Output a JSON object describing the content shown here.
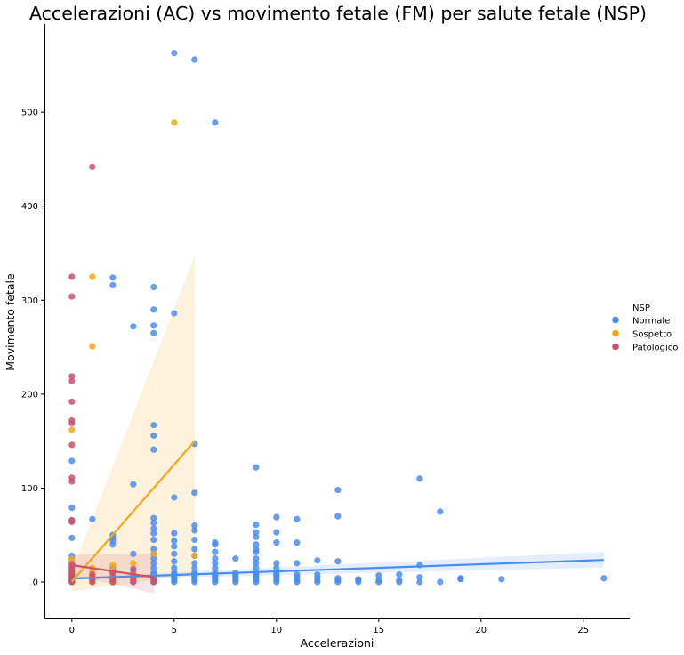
{
  "chart_data": {
    "type": "scatter",
    "title": "Accelerazioni (AC) vs movimento fetale (FM) per salute fetale (NSP)",
    "xlabel": "Accelerazioni",
    "ylabel": "Movimento fetale",
    "xlim": [
      -1.3,
      27.3
    ],
    "ylim": [
      -40,
      595
    ],
    "xticks": [
      "0",
      "5",
      "10",
      "15",
      "20",
      "25"
    ],
    "yticks": [
      "0",
      "100",
      "200",
      "300",
      "400",
      "500"
    ],
    "legend": {
      "title": "NSP",
      "placement": "right"
    },
    "series": [
      {
        "name": "Normale",
        "color": "#4a8df0",
        "points": [
          [
            0,
            0
          ],
          [
            0,
            3
          ],
          [
            0,
            5
          ],
          [
            0,
            8
          ],
          [
            0,
            12
          ],
          [
            0,
            15
          ],
          [
            0,
            20
          ],
          [
            0,
            25
          ],
          [
            0,
            28
          ],
          [
            0,
            47
          ],
          [
            0,
            65
          ],
          [
            0,
            79
          ],
          [
            0,
            129
          ],
          [
            1,
            0
          ],
          [
            1,
            3
          ],
          [
            1,
            8
          ],
          [
            1,
            67
          ],
          [
            2,
            0
          ],
          [
            2,
            5
          ],
          [
            2,
            10
          ],
          [
            2,
            15
          ],
          [
            2,
            40
          ],
          [
            2,
            44
          ],
          [
            2,
            47
          ],
          [
            2,
            50
          ],
          [
            2,
            316
          ],
          [
            2,
            324
          ],
          [
            3,
            0
          ],
          [
            3,
            2
          ],
          [
            3,
            5
          ],
          [
            3,
            8
          ],
          [
            3,
            12
          ],
          [
            3,
            30
          ],
          [
            3,
            104
          ],
          [
            3,
            272
          ],
          [
            4,
            0
          ],
          [
            4,
            2
          ],
          [
            4,
            4
          ],
          [
            4,
            6
          ],
          [
            4,
            8
          ],
          [
            4,
            10
          ],
          [
            4,
            15
          ],
          [
            4,
            20
          ],
          [
            4,
            25
          ],
          [
            4,
            30
          ],
          [
            4,
            35
          ],
          [
            4,
            45
          ],
          [
            4,
            52
          ],
          [
            4,
            57
          ],
          [
            4,
            63
          ],
          [
            4,
            68
          ],
          [
            4,
            141
          ],
          [
            4,
            156
          ],
          [
            4,
            167
          ],
          [
            4,
            265
          ],
          [
            4,
            273
          ],
          [
            4,
            290
          ],
          [
            4,
            314
          ],
          [
            5,
            0
          ],
          [
            5,
            2
          ],
          [
            5,
            4
          ],
          [
            5,
            6
          ],
          [
            5,
            8
          ],
          [
            5,
            10
          ],
          [
            5,
            15
          ],
          [
            5,
            22
          ],
          [
            5,
            30
          ],
          [
            5,
            38
          ],
          [
            5,
            44
          ],
          [
            5,
            52
          ],
          [
            5,
            90
          ],
          [
            5,
            286
          ],
          [
            5,
            563
          ],
          [
            6,
            0
          ],
          [
            6,
            2
          ],
          [
            6,
            4
          ],
          [
            6,
            6
          ],
          [
            6,
            8
          ],
          [
            6,
            10
          ],
          [
            6,
            15
          ],
          [
            6,
            20
          ],
          [
            6,
            28
          ],
          [
            6,
            35
          ],
          [
            6,
            45
          ],
          [
            6,
            55
          ],
          [
            6,
            60
          ],
          [
            6,
            95
          ],
          [
            6,
            147
          ],
          [
            6,
            556
          ],
          [
            7,
            0
          ],
          [
            7,
            2
          ],
          [
            7,
            4
          ],
          [
            7,
            6
          ],
          [
            7,
            8
          ],
          [
            7,
            10
          ],
          [
            7,
            15
          ],
          [
            7,
            20
          ],
          [
            7,
            25
          ],
          [
            7,
            32
          ],
          [
            7,
            40
          ],
          [
            7,
            42
          ],
          [
            7,
            489
          ],
          [
            8,
            0
          ],
          [
            8,
            2
          ],
          [
            8,
            4
          ],
          [
            8,
            6
          ],
          [
            8,
            8
          ],
          [
            8,
            10
          ],
          [
            8,
            25
          ],
          [
            9,
            0
          ],
          [
            9,
            2
          ],
          [
            9,
            4
          ],
          [
            9,
            6
          ],
          [
            9,
            8
          ],
          [
            9,
            10
          ],
          [
            9,
            15
          ],
          [
            9,
            20
          ],
          [
            9,
            25
          ],
          [
            9,
            32
          ],
          [
            9,
            35
          ],
          [
            9,
            40
          ],
          [
            9,
            48
          ],
          [
            9,
            53
          ],
          [
            9,
            61
          ],
          [
            9,
            122
          ],
          [
            10,
            0
          ],
          [
            10,
            2
          ],
          [
            10,
            4
          ],
          [
            10,
            6
          ],
          [
            10,
            8
          ],
          [
            10,
            10
          ],
          [
            10,
            15
          ],
          [
            10,
            20
          ],
          [
            10,
            42
          ],
          [
            10,
            53
          ],
          [
            10,
            69
          ],
          [
            11,
            0
          ],
          [
            11,
            2
          ],
          [
            11,
            5
          ],
          [
            11,
            8
          ],
          [
            11,
            20
          ],
          [
            11,
            42
          ],
          [
            11,
            67
          ],
          [
            12,
            0
          ],
          [
            12,
            2
          ],
          [
            12,
            5
          ],
          [
            12,
            8
          ],
          [
            12,
            23
          ],
          [
            13,
            0
          ],
          [
            13,
            2
          ],
          [
            13,
            4
          ],
          [
            13,
            22
          ],
          [
            13,
            70
          ],
          [
            13,
            98
          ],
          [
            14,
            0
          ],
          [
            14,
            2
          ],
          [
            14,
            3
          ],
          [
            15,
            0
          ],
          [
            15,
            2
          ],
          [
            15,
            7
          ],
          [
            16,
            0
          ],
          [
            16,
            2
          ],
          [
            16,
            8
          ],
          [
            17,
            0
          ],
          [
            17,
            5
          ],
          [
            17,
            18
          ],
          [
            17,
            110
          ],
          [
            18,
            0
          ],
          [
            18,
            75
          ],
          [
            19,
            3
          ],
          [
            19,
            4
          ],
          [
            21,
            3
          ],
          [
            26,
            4
          ]
        ],
        "fit": {
          "x": [
            0,
            26
          ],
          "y": [
            3.7,
            23.5
          ],
          "ci_low": [
            2.2,
            15.5
          ],
          "ci_high": [
            5.2,
            32
          ]
        }
      },
      {
        "name": "Sospetto",
        "color": "#f5a816",
        "points": [
          [
            0,
            0
          ],
          [
            0,
            2
          ],
          [
            0,
            5
          ],
          [
            0,
            8
          ],
          [
            0,
            12
          ],
          [
            0,
            15
          ],
          [
            0,
            18
          ],
          [
            0,
            22
          ],
          [
            0,
            25
          ],
          [
            0,
            162
          ],
          [
            1,
            0
          ],
          [
            1,
            3
          ],
          [
            1,
            8
          ],
          [
            1,
            12
          ],
          [
            1,
            15
          ],
          [
            1,
            251
          ],
          [
            1,
            325
          ],
          [
            2,
            0
          ],
          [
            2,
            5
          ],
          [
            2,
            12
          ],
          [
            2,
            18
          ],
          [
            3,
            2
          ],
          [
            3,
            8
          ],
          [
            3,
            20
          ],
          [
            4,
            5
          ],
          [
            4,
            30
          ],
          [
            6,
            28
          ],
          [
            5,
            489
          ]
        ],
        "fit": {
          "x": [
            0,
            6
          ],
          "y": [
            0.5,
            150
          ],
          "ci_low": [
            -10,
            8
          ],
          "ci_high": [
            11,
            347
          ]
        }
      },
      {
        "name": "Patologico",
        "color": "#d0506a",
        "points": [
          [
            0,
            0
          ],
          [
            0,
            1
          ],
          [
            0,
            2
          ],
          [
            0,
            4
          ],
          [
            0,
            6
          ],
          [
            0,
            8
          ],
          [
            0,
            10
          ],
          [
            0,
            13
          ],
          [
            0,
            16
          ],
          [
            0,
            19
          ],
          [
            0,
            64
          ],
          [
            0,
            66
          ],
          [
            0,
            107
          ],
          [
            0,
            111
          ],
          [
            0,
            146
          ],
          [
            0,
            169
          ],
          [
            0,
            172
          ],
          [
            0,
            192
          ],
          [
            0,
            214
          ],
          [
            0,
            219
          ],
          [
            0,
            304
          ],
          [
            0,
            325
          ],
          [
            1,
            0
          ],
          [
            1,
            2
          ],
          [
            1,
            5
          ],
          [
            1,
            8
          ],
          [
            1,
            442
          ],
          [
            2,
            0
          ],
          [
            2,
            2
          ],
          [
            2,
            5
          ],
          [
            2,
            10
          ],
          [
            3,
            0
          ],
          [
            3,
            3
          ],
          [
            3,
            8
          ],
          [
            3,
            14
          ],
          [
            4,
            0
          ],
          [
            4,
            3
          ]
        ],
        "fit": {
          "x": [
            0,
            4
          ],
          "y": [
            18,
            5
          ],
          "ci_low": [
            7,
            -12
          ],
          "ci_high": [
            29,
            30
          ]
        }
      }
    ]
  }
}
